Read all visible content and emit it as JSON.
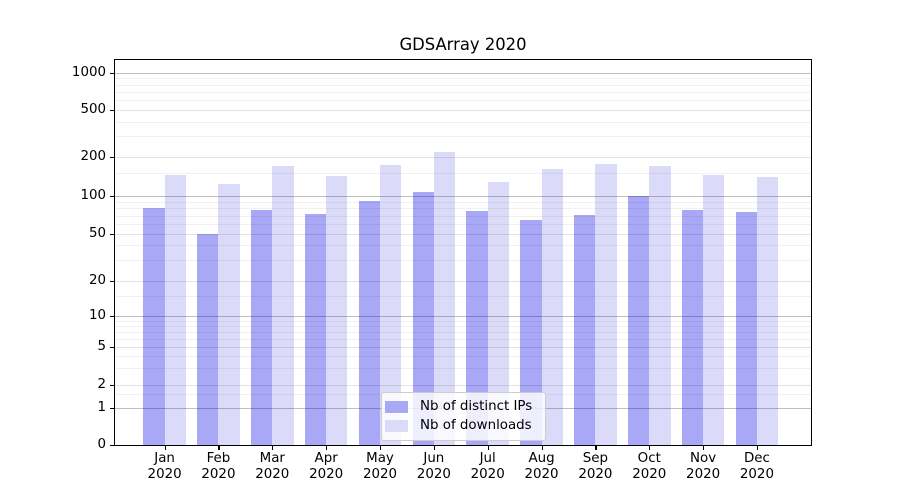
{
  "chart_data": {
    "type": "bar",
    "title": "GDSArray 2020",
    "x_tick_months": [
      "Jan",
      "Feb",
      "Mar",
      "Apr",
      "May",
      "Jun",
      "Jul",
      "Aug",
      "Sep",
      "Oct",
      "Nov",
      "Dec"
    ],
    "x_tick_year": "2020",
    "y_ticks": [
      0,
      1,
      2,
      5,
      10,
      20,
      50,
      100,
      200,
      500,
      1000
    ],
    "y_scale": "log (symlog-like, 0 shown at baseline)",
    "ylim": [
      0,
      1280
    ],
    "grid": "horizontal major + minor gridlines on",
    "legend_position": "inside bottom-center",
    "series": [
      {
        "name": "Nb of distinct IPs",
        "color": "#a8a8f6",
        "values": [
          80,
          50,
          78,
          72,
          92,
          107,
          76,
          65,
          71,
          100,
          78,
          75
        ]
      },
      {
        "name": "Nb of downloads",
        "color": "#dbdbf9",
        "values": [
          147,
          124,
          171,
          143,
          174,
          220,
          128,
          162,
          177,
          170,
          146,
          140
        ]
      }
    ]
  },
  "colors": {
    "background": "#ffffff",
    "spine": "#000000",
    "text": "#000000",
    "grid_power10": "rgba(0,0,0,0.25)",
    "grid_major": "rgba(0,0,0,0.11)",
    "grid_minor": "rgba(0,0,0,0.055)",
    "legend_bg": "rgba(255,255,255,0.8)",
    "legend_border": "#cccccc"
  }
}
